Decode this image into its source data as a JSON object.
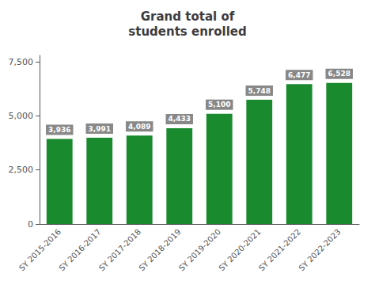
{
  "chart_data": {
    "type": "bar",
    "title": "Grand total of\nstudents enrolled",
    "categories": [
      "SY 2015-2016",
      "SY 2016-2017",
      "SY 2017-2018",
      "SY 2018-2019",
      "SY 2019-2020",
      "SY 2020-2021",
      "SY 2021-2022",
      "SY 2022-2023"
    ],
    "values": [
      3936,
      3991,
      4089,
      4433,
      5100,
      5748,
      6477,
      6528
    ],
    "value_labels": [
      "3,936",
      "3,991",
      "4,089",
      "4,433",
      "5,100",
      "5,748",
      "6,477",
      "6,528"
    ],
    "data_labels": true,
    "color": "#1a8a2e",
    "ylim": [
      0,
      7800
    ],
    "yticks": [
      0,
      {
        "value": 2500,
        "label": "2,500"
      },
      {
        "value": 5000,
        "label": "5,000"
      },
      {
        "value": 7500,
        "label": "7,500"
      }
    ],
    "grid": false
  }
}
